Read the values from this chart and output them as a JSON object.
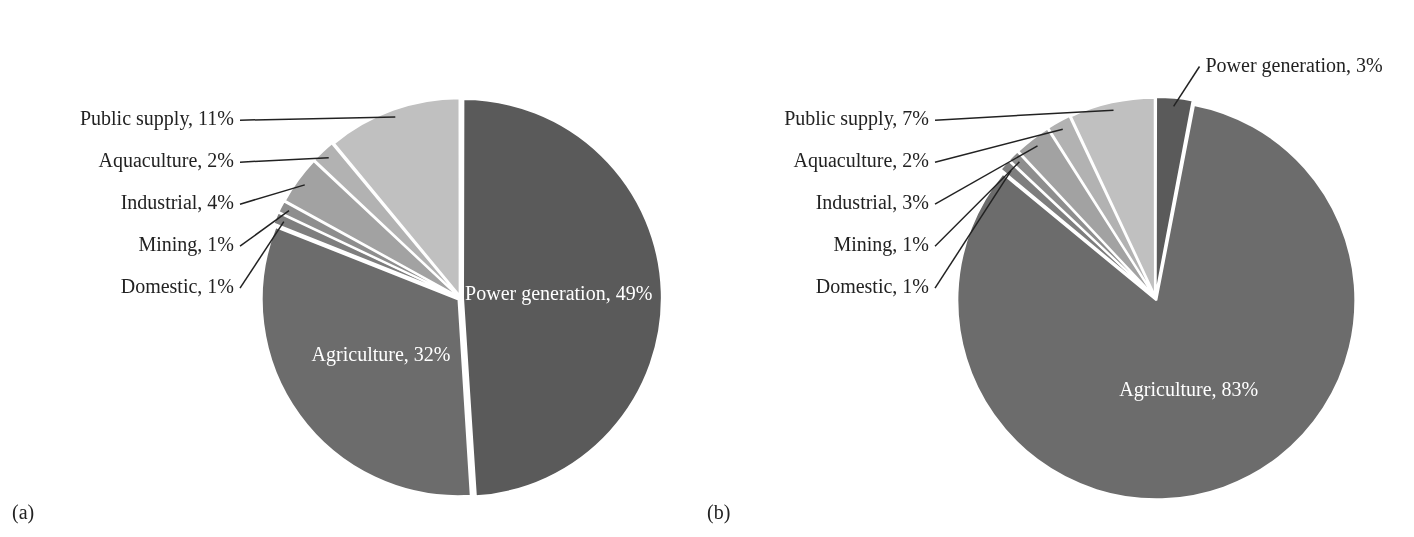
{
  "chart_data": [
    {
      "type": "pie",
      "categories": [
        "Power generation",
        "Agriculture",
        "Domestic",
        "Mining",
        "Industrial",
        "Aquaculture",
        "Public supply"
      ],
      "values": [
        49,
        32,
        1,
        1,
        4,
        2,
        11
      ],
      "value_labels": [
        "49%",
        "32%",
        "1%",
        "1%",
        "4%",
        "2%",
        "11%"
      ],
      "colors": [
        "#5a5a5a",
        "#6c6c6c",
        "#7e7e7e",
        "#8e8e8e",
        "#a2a2a2",
        "#b2b2b2",
        "#c0c0c0"
      ],
      "annotations": [
        "(a)"
      ]
    },
    {
      "type": "pie",
      "categories": [
        "Power generation",
        "Agriculture",
        "Domestic",
        "Mining",
        "Industrial",
        "Aquaculture",
        "Public supply"
      ],
      "values": [
        3,
        83,
        1,
        1,
        3,
        2,
        7
      ],
      "value_labels": [
        "3%",
        "83%",
        "1%",
        "1%",
        "3%",
        "2%",
        "7%"
      ],
      "colors": [
        "#5a5a5a",
        "#6c6c6c",
        "#7e7e7e",
        "#8e8e8e",
        "#a2a2a2",
        "#b2b2b2",
        "#c0c0c0"
      ],
      "annotations": [
        "(b)"
      ]
    }
  ]
}
